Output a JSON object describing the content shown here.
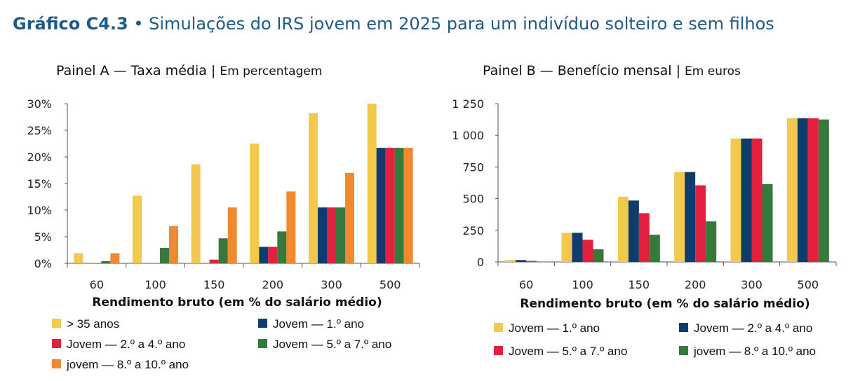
{
  "title": {
    "prefix": "Gráfico C4.3",
    "separator": "•",
    "text": "Simulações do IRS jovem em 2025 para um indivíduo solteiro e sem filhos"
  },
  "colors": {
    "title": "#1f5a86",
    "yellow": "#f2c94c",
    "navy": "#0f3c6e",
    "red": "#e4203f",
    "green": "#367a3b",
    "orange": "#f0892f"
  },
  "chart_data": [
    {
      "type": "bar",
      "panel": "A",
      "title": "Painel A — Taxa média",
      "unit": "Em percentagem",
      "xlabel": "Rendimento bruto (em % do salário médio)",
      "categories": [
        "60",
        "100",
        "150",
        "200",
        "300",
        "500"
      ],
      "yticks": [
        "0%",
        "5%",
        "10%",
        "15%",
        "20%",
        "25%",
        "30%"
      ],
      "ylim": [
        0,
        30
      ],
      "series": [
        {
          "name": "> 35 anos",
          "color": "#f2c94c",
          "values": [
            1.9,
            12.7,
            18.6,
            22.5,
            28.2,
            30.0
          ]
        },
        {
          "name": "Jovem — 1.º ano",
          "color": "#0f3c6e",
          "values": [
            0,
            0,
            0,
            3.1,
            10.5,
            21.7
          ]
        },
        {
          "name": "Jovem — 2.º a 4.º ano",
          "color": "#e4203f",
          "values": [
            0,
            0,
            0.7,
            3.1,
            10.5,
            21.7
          ]
        },
        {
          "name": "Jovem — 5.º a 7.º ano",
          "color": "#367a3b",
          "values": [
            0.4,
            2.9,
            4.7,
            6.0,
            10.5,
            21.7
          ]
        },
        {
          "name": "jovem — 8.º a 10.º ano",
          "color": "#f0892f",
          "values": [
            1.9,
            7.0,
            10.5,
            13.5,
            17.0,
            21.7
          ]
        }
      ],
      "legend": [
        "> 35 anos",
        "Jovem — 1.º ano",
        "Jovem — 2.º a 4.º ano",
        "Jovem — 5.º a 7.º ano",
        "jovem — 8.º a 10.º ano"
      ]
    },
    {
      "type": "bar",
      "panel": "B",
      "title": "Painel B — Benefício mensal",
      "unit": "Em euros",
      "xlabel": "Rendimento bruto (em % do salário médio)",
      "categories": [
        "60",
        "100",
        "150",
        "200",
        "300",
        "500"
      ],
      "yticks": [
        "0",
        "250",
        "500",
        "750",
        "1 000",
        "1 250"
      ],
      "ylim": [
        0,
        1250
      ],
      "series": [
        {
          "name": "Jovem — 1.º ano",
          "color": "#f2c94c",
          "values": [
            15,
            230,
            515,
            710,
            975,
            1135
          ]
        },
        {
          "name": "Jovem — 2.º a 4.º ano",
          "color": "#0f3c6e",
          "values": [
            15,
            230,
            485,
            710,
            975,
            1135
          ]
        },
        {
          "name": "Jovem — 5.º a 7.º ano",
          "color": "#e4203f",
          "values": [
            8,
            175,
            385,
            605,
            975,
            1135
          ]
        },
        {
          "name": "jovem — 8.º a 10.º ano",
          "color": "#367a3b",
          "values": [
            0,
            100,
            215,
            320,
            615,
            1125
          ]
        }
      ],
      "legend": [
        "Jovem — 1.º ano",
        "Jovem — 2.º a 4.º ano",
        "Jovem — 5.º a 7.º ano",
        "jovem — 8.º a 10.º ano"
      ]
    }
  ]
}
